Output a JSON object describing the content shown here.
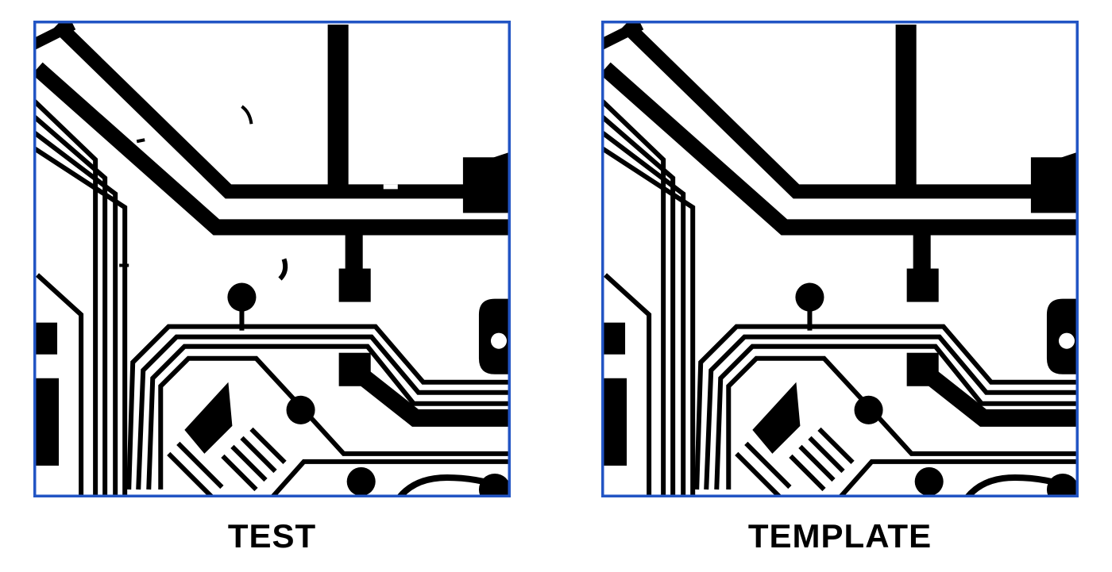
{
  "panels": [
    {
      "id": "test",
      "caption": "TEST"
    },
    {
      "id": "template",
      "caption": "TEMPLATE"
    }
  ],
  "colors": {
    "frame": "#2255c4",
    "trace": "#000000",
    "background": "#ffffff"
  }
}
